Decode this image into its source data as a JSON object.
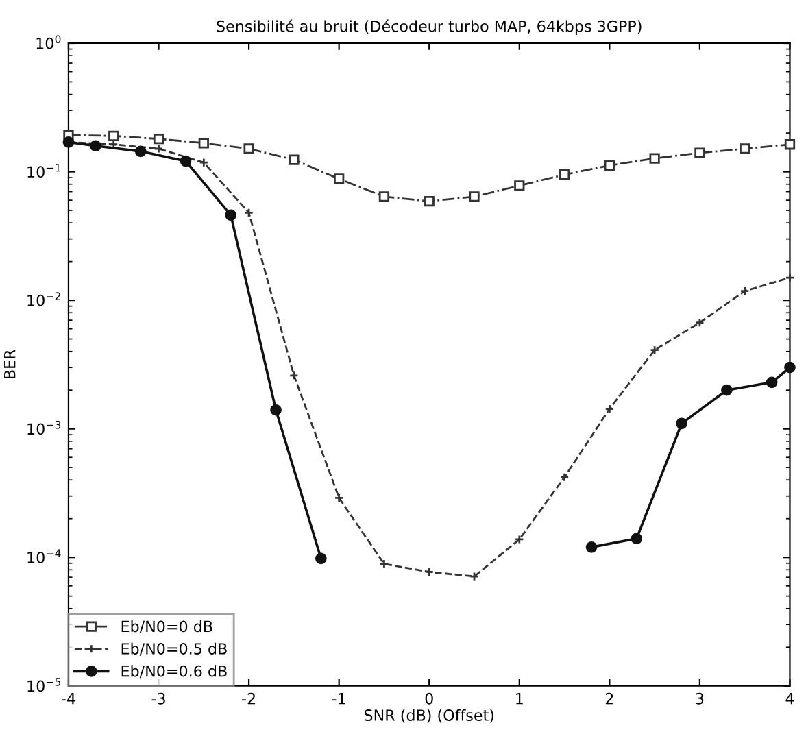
{
  "chart_data": {
    "type": "line",
    "title": "Sensibilité au bruit (Décodeur turbo MAP, 64kbps 3GPP)",
    "xlabel": "SNR (dB) (Offset)",
    "ylabel": "BER",
    "log": "y",
    "grid": false,
    "legend": "bottom left",
    "xlim": [
      -4,
      4
    ],
    "xticks": [
      -4,
      -3,
      -2,
      -1,
      0,
      1,
      2,
      3,
      4
    ],
    "ylim": [
      1e-05,
      1
    ],
    "yticks": [
      {
        "value": 1e-05,
        "label": "10$^{−5}$"
      },
      {
        "value": 0.0001,
        "label": "10$^{−4}$"
      },
      {
        "value": 0.001,
        "label": "10$^{−3}$"
      },
      {
        "value": 0.01,
        "label": "10$^{−2}$"
      },
      {
        "value": 0.1,
        "label": "10$^{−1}$"
      },
      {
        "value": 1,
        "label": "10$^{0}$"
      }
    ],
    "series": [
      {
        "name": "Eb/N0=0 dB",
        "color": "#333333",
        "marker": "square",
        "line_style": "dashdot",
        "x": [
          -4,
          -3.5,
          -3,
          -2.5,
          -2,
          -1.5,
          -1,
          -0.5,
          0,
          0.5,
          1,
          1.5,
          2,
          2.5,
          3,
          3.5,
          4
        ],
        "values": [
          0.193,
          0.19,
          0.18,
          0.167,
          0.151,
          0.124,
          0.088,
          0.064,
          0.059,
          0.064,
          0.078,
          0.095,
          0.112,
          0.127,
          0.14,
          0.151,
          0.163
        ]
      },
      {
        "name": "Eb/N0=0.5 dB",
        "color": "#333333",
        "marker": "cross",
        "line_style": "dashed",
        "x": [
          -4,
          -3.5,
          -3,
          -2.5,
          -2,
          -1.5,
          -1,
          -0.5,
          0,
          0.5,
          1,
          1.5,
          2,
          2.5,
          3,
          3.5,
          4
        ],
        "values": [
          0.17,
          0.163,
          0.151,
          0.118,
          0.048,
          0.0026,
          0.00029,
          8.9e-05,
          7.7e-05,
          7.1e-05,
          0.000138,
          0.00042,
          0.00143,
          0.0041,
          0.0067,
          0.0118,
          0.015
        ]
      },
      {
        "name": "Eb/N0=0.6 dB",
        "color": "#111111",
        "marker": "circle",
        "line_style": "solid",
        "x": [
          -4,
          -3.7,
          -3.2,
          -2.7,
          -2.2,
          -1.7,
          -1.2,
          0,
          1.8,
          2.3,
          2.8,
          3.3,
          3.8,
          4
        ],
        "values": [
          0.17,
          0.159,
          0.144,
          0.121,
          0.046,
          0.0014,
          9.8e-05,
          null,
          0.00012,
          0.00014,
          0.0011,
          0.002,
          0.0023,
          0.003
        ]
      }
    ]
  }
}
